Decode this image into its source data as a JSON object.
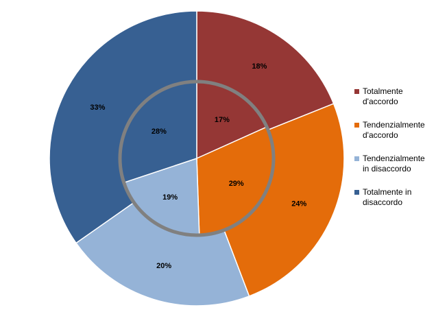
{
  "chart_data": {
    "type": "pie",
    "subtype": "double-ring doughnut",
    "categories": [
      "Totalmente d'accordo",
      "Tendenzialmente d'accordo",
      "Tendenzialmente in disaccordo",
      "Totalmente in disaccordo"
    ],
    "series": [
      {
        "ring": "outer",
        "values": [
          18,
          24,
          20,
          33
        ],
        "labels": [
          "18%",
          "24%",
          "20%",
          "33%"
        ]
      },
      {
        "ring": "inner",
        "values": [
          17,
          29,
          19,
          28
        ],
        "labels": [
          "17%",
          "29%",
          "19%",
          "28%"
        ]
      }
    ],
    "colors": [
      "#953735",
      "#E46C0A",
      "#95B3D7",
      "#376092"
    ],
    "legend_position": "right"
  },
  "legend": {
    "items": [
      {
        "line1": "Totalmente",
        "line2": "d'accordo",
        "color": "#953735"
      },
      {
        "line1": "Tendenzialmente",
        "line2": "d'accordo",
        "color": "#E46C0A"
      },
      {
        "line1": "Tendenzialmente",
        "line2": "in disaccordo",
        "color": "#95B3D7"
      },
      {
        "line1": "Totalmente in",
        "line2": "disaccordo",
        "color": "#376092"
      }
    ]
  }
}
